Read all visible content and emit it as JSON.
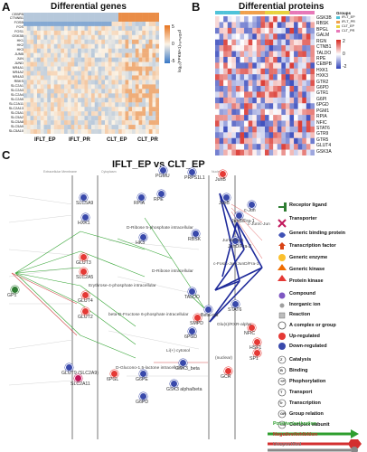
{
  "panel_a": {
    "letter": "A",
    "title": "Differential genes",
    "genes": [
      "CEBPB",
      "CTNNB1",
      "FOSB",
      "FOS",
      "FOS1",
      "GSK3B",
      "HK1",
      "HK2",
      "HK3",
      "JUNB",
      "JUN",
      "JUND",
      "NR4A1",
      "NR4A2",
      "NR4A3",
      "RBKS",
      "SLC2A1",
      "SLC2A3",
      "SLC2A4",
      "SLC2A5",
      "SLC2A11",
      "SLC2A13",
      "SLC5A1",
      "SLC5A2",
      "SLC5A8",
      "SLC5A9",
      "SLC5A10"
    ],
    "groups": [
      "IFLT_EP",
      "IFLT_PR",
      "CLT_EP",
      "CLT_PR"
    ],
    "colorbar_ticks": [
      "5",
      "0",
      "-5"
    ],
    "colorbar_title": "log₁₀(FPKM+1)ₙₒᵣₘₐₗᵢ𝓏ₑd"
  },
  "panel_b": {
    "letter": "B",
    "title": "Differential proteins",
    "proteins": [
      "GSK3B",
      "RBSK",
      "BPGL",
      "GALM",
      "RGN",
      "CTNB1",
      "TALDO",
      "RPE",
      "CEBPB",
      "HXK1",
      "HXK3",
      "GTR2",
      "G6PD",
      "GTR1",
      "G6PI",
      "6PGD",
      "PGM1",
      "RPIA",
      "NFIC",
      "STAT6",
      "GTR9",
      "GTR5",
      "GLUT4",
      "GSK3A"
    ],
    "legend_title": "Groups",
    "legend_items": [
      {
        "label": "IFLT_EP",
        "color": "#4fc3d9"
      },
      {
        "label": "IFLT_PR",
        "color": "#f0a04b"
      },
      {
        "label": "CLT_EP",
        "color": "#e8d23e"
      },
      {
        "label": "CLT_PR",
        "color": "#e778b8"
      }
    ],
    "colorbar_ticks": [
      "2",
      "0",
      "-2"
    ]
  },
  "panel_c": {
    "letter": "C",
    "title": "IFLT_EP vs CLT_EP",
    "compartments": [
      "Extracellular Membrane",
      "Cytoplasm",
      "Nucleus"
    ],
    "nodes": {
      "slc5a9": "SLC5A9",
      "hxk1": "HXK1",
      "glut3": "GLUT3",
      "slc2a5": "SLC2A5",
      "glut4": "GLUT4",
      "glut2": "GLUT2",
      "gp1": "GP1",
      "glut9": "GLUT9 (SLC2A9)",
      "slc2a11": "SLC2A11",
      "rpia": "RPIA",
      "pgmu": "PGMU",
      "prps1l1": "PRPS1L1",
      "rpe": "RPE",
      "hk3": "HK3",
      "rbsk": "RBSK",
      "taldo": "TALDO",
      "pgl": "6PGL",
      "g6pe": "G6PE",
      "g6pd": "G6PD",
      "pgd": "6PGD",
      "gsk3b": "GSK3_beta",
      "gsk3ab": "GSK3 alpha/beta",
      "smpd": "SMPD",
      "beta_cat": "Beta-cat",
      "stat6": "STAT6",
      "junb_pre": "JunB",
      "junb": "JunB",
      "junb_fra": "JunB/Fra-1",
      "junc": "c-Jun",
      "jund_fra": "JunD/Fra-2",
      "nfic": "NFIC",
      "hsf1": "HSF1",
      "sp1": "SP1",
      "gcr": "GCR"
    },
    "labels": {
      "dribose5p": "D-Ribose 5-phosphate intracellular",
      "dribose": "D-Ribose intracellular",
      "erythrose": "Erythrose-4-phosphate intracellular",
      "fructose6p": "beta-D-Fructose 6-phosphate intracellular",
      "glucono": "D-Glucono-1,5-lactone intracellular",
      "cjun_junb": "c-Jun/c-Jun",
      "jund_fra1": "c-Fos/c-Jun/JunD/Fra-1",
      "junb_fra1": "JunB/Fra-1",
      "rxr": "Glu(s)/RXR-alpha",
      "li": "Li(+) cytosol",
      "nuclear": "(nuclear)"
    },
    "legend": [
      {
        "label": "Receptor ligand",
        "icon": "receptor-ligand-icon"
      },
      {
        "label": "Transporter",
        "icon": "transporter-icon"
      },
      {
        "label": "Generic binding protein",
        "icon": "binding-protein-icon"
      },
      {
        "label": "Transcription factor",
        "icon": "transcription-factor-icon"
      },
      {
        "label": "Generic enzyme",
        "icon": "enzyme-icon"
      },
      {
        "label": "Generic kinase",
        "icon": "kinase-icon"
      },
      {
        "label": "Protein kinase",
        "icon": "protein-kinase-icon"
      },
      {
        "label": "Compound",
        "icon": "compound-icon"
      },
      {
        "label": "Inorganic ion",
        "icon": "inorganic-ion-icon"
      },
      {
        "label": "Reaction",
        "icon": "reaction-icon"
      },
      {
        "label": "A complex or group",
        "icon": "complex-icon"
      },
      {
        "label": "Up-regulated",
        "icon": "up-regulated-icon"
      },
      {
        "label": "Down-regulated",
        "icon": "down-regulated-icon"
      }
    ],
    "mech_legend": [
      {
        "sym": "Z",
        "label": "Catalysis"
      },
      {
        "sym": "B",
        "label": "Binding"
      },
      {
        "sym": "+P",
        "label": "Phophorylation"
      },
      {
        "sym": "T",
        "label": "Transport"
      },
      {
        "sym": "Tr",
        "label": "Transcription"
      },
      {
        "sym": "GR",
        "label": "Group relation"
      },
      {
        "sym": "CS",
        "label": "Complex subunit"
      }
    ],
    "arrows": [
      {
        "label": "Positive/activation",
        "color": "#2e9e2e"
      },
      {
        "label": "Negative/inhibition",
        "color": "#d32f2f"
      },
      {
        "label": "Unspecified",
        "color": "#888888"
      }
    ]
  }
}
